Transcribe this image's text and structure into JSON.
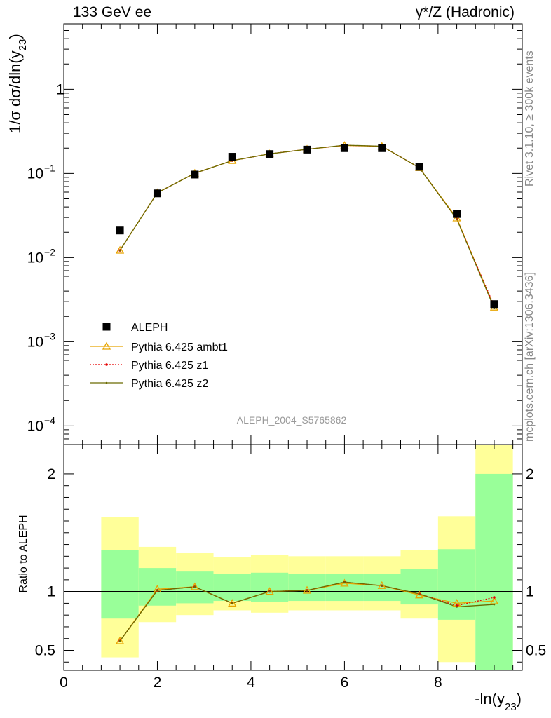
{
  "header": {
    "left": "133 GeV ee",
    "right": "γ*/Z (Hadronic)",
    "side_top": "Rivet 3.1.10, ≥ 300k events",
    "side_bottom": "mcplots.cern.ch [arXiv:1306.3436]",
    "analysis_id": "ALEPH_2004_S5765862"
  },
  "colors": {
    "data": "#000000",
    "ambt1": "#e8a500",
    "z1": "#e60000",
    "z2": "#6b6b00",
    "band_inner": "#99ff99",
    "band_outer": "#ffff99"
  },
  "chart_data": [
    {
      "type": "scatter",
      "panel": "main",
      "ylabel": "1/σ dσ/dln(y23)",
      "yscale": "log",
      "xlim": [
        0,
        9.8
      ],
      "ylim": [
        6e-05,
        6
      ],
      "x": [
        1.2,
        2.0,
        2.8,
        3.6,
        4.4,
        5.2,
        6.0,
        6.8,
        7.6,
        8.4,
        9.2
      ],
      "bin_edges": [
        0.8,
        1.6,
        2.4,
        3.2,
        4.0,
        4.8,
        5.6,
        6.4,
        7.2,
        8.0,
        8.8,
        9.6
      ],
      "legend": {
        "position": "bottom-left",
        "entries": [
          "ALEPH",
          "Pythia 6.425 ambt1",
          "Pythia 6.425 z1",
          "Pythia 6.425 z2"
        ]
      },
      "series": [
        {
          "name": "ALEPH",
          "style": "square",
          "values": [
            0.021,
            0.058,
            0.097,
            0.158,
            0.17,
            0.192,
            0.2,
            0.2,
            0.12,
            0.033,
            0.0028
          ]
        },
        {
          "name": "Pythia 6.425 ambt1",
          "style": "triangle",
          "values": [
            0.0122,
            0.059,
            0.1005,
            0.142,
            0.171,
            0.194,
            0.215,
            0.21,
            0.117,
            0.0295,
            0.00257
          ]
        },
        {
          "name": "Pythia 6.425 z1",
          "style": "dotted",
          "values": [
            0.0122,
            0.059,
            0.1005,
            0.142,
            0.171,
            0.194,
            0.216,
            0.211,
            0.117,
            0.0288,
            0.00267
          ]
        },
        {
          "name": "Pythia 6.425 z2",
          "style": "line",
          "values": [
            0.0122,
            0.059,
            0.1005,
            0.142,
            0.171,
            0.194,
            0.217,
            0.211,
            0.117,
            0.0287,
            0.0025
          ]
        }
      ]
    },
    {
      "type": "line",
      "panel": "ratio",
      "xlabel": "-ln(y23)",
      "ylabel": "Ratio to ALEPH",
      "xlim": [
        0,
        9.8
      ],
      "ylim": [
        0.33,
        2.25
      ],
      "x": [
        1.2,
        2.0,
        2.8,
        3.6,
        4.4,
        5.2,
        6.0,
        6.8,
        7.6,
        8.4,
        9.2
      ],
      "reference_line": 1,
      "band_inner": {
        "lower": [
          0.77,
          0.88,
          0.9,
          0.92,
          0.91,
          0.92,
          0.92,
          0.92,
          0.89,
          0.76,
          0.0
        ],
        "upper": [
          1.35,
          1.2,
          1.17,
          1.15,
          1.16,
          1.15,
          1.15,
          1.15,
          1.19,
          1.36,
          2.0
        ]
      },
      "band_outer": {
        "lower": [
          0.44,
          0.74,
          0.8,
          0.84,
          0.82,
          0.84,
          0.84,
          0.84,
          0.77,
          0.4,
          0.0
        ],
        "upper": [
          1.63,
          1.38,
          1.33,
          1.29,
          1.31,
          1.3,
          1.3,
          1.3,
          1.35,
          1.64,
          2.5
        ]
      },
      "series": [
        {
          "name": "Pythia 6.425 ambt1",
          "values": [
            0.58,
            1.02,
            1.04,
            0.9,
            1.0,
            1.01,
            1.07,
            1.05,
            0.97,
            0.9,
            0.92
          ]
        },
        {
          "name": "Pythia 6.425 z1",
          "values": [
            0.58,
            1.01,
            1.04,
            0.9,
            1.0,
            1.01,
            1.08,
            1.05,
            0.98,
            0.88,
            0.95
          ]
        },
        {
          "name": "Pythia 6.425 z2",
          "values": [
            0.58,
            1.01,
            1.04,
            0.9,
            1.0,
            1.01,
            1.08,
            1.05,
            0.98,
            0.87,
            0.89
          ]
        }
      ],
      "x_ticks": [
        "0",
        "2",
        "4",
        "6",
        "8"
      ],
      "y_ticks": [
        "0.5",
        "1",
        "2"
      ]
    }
  ]
}
